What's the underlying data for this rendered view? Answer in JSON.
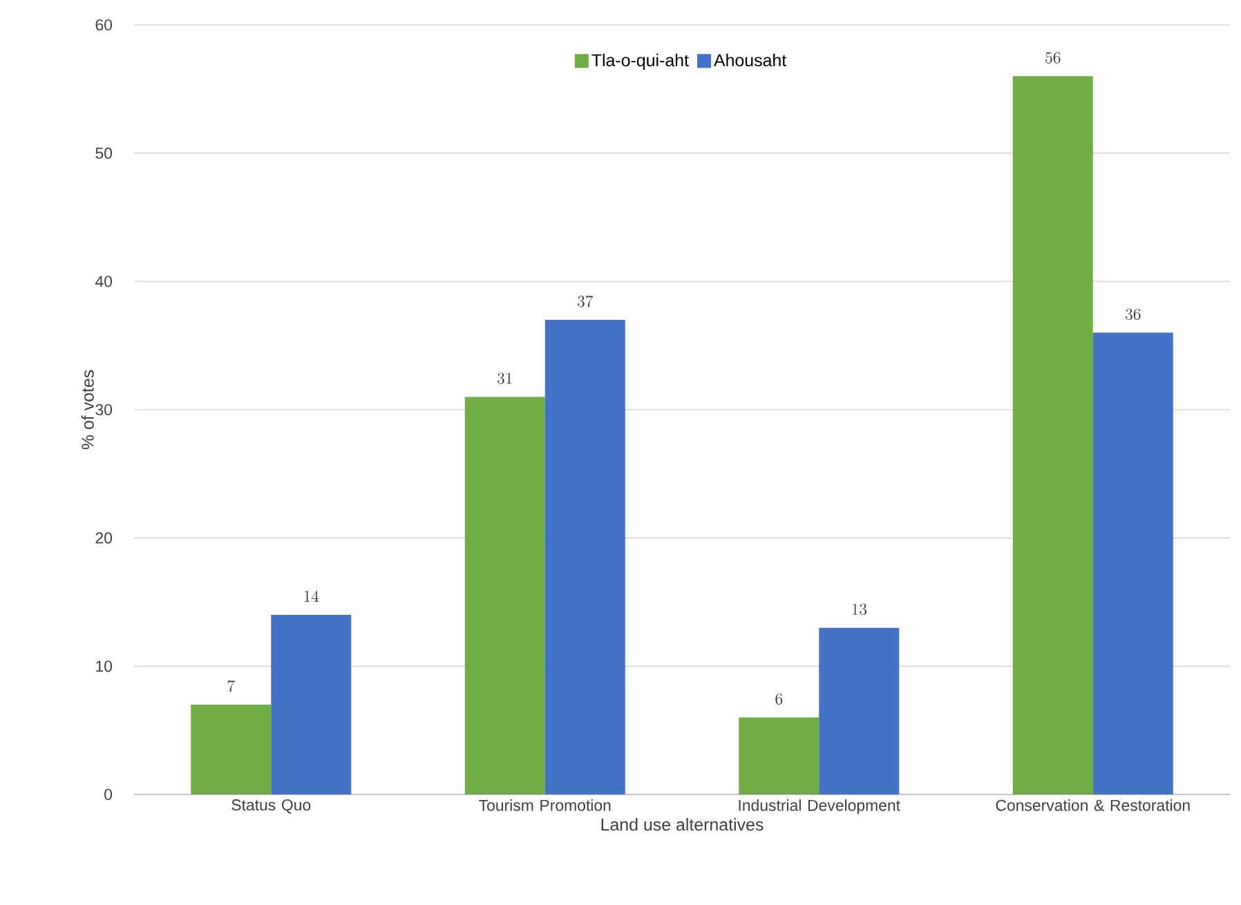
{
  "chart_data": {
    "type": "bar",
    "xlabel": "Land use alternatives",
    "ylabel": "% of votes",
    "categories": [
      "Status Quo",
      "Tourism Promotion",
      "Industrial Development",
      "Conservation & Restoration"
    ],
    "series": [
      {
        "name": "Tla-o-qui-aht",
        "color": "#70ad47",
        "values": [
          7,
          31,
          6,
          56
        ]
      },
      {
        "name": "Ahousaht",
        "color": "#4472c4",
        "values": [
          14,
          37,
          13,
          36
        ]
      }
    ],
    "ylim": [
      0,
      60
    ],
    "yticks": [
      0,
      10,
      20,
      30,
      40,
      50,
      60
    ],
    "grid": "y",
    "legend": "top",
    "data_labels": true
  }
}
